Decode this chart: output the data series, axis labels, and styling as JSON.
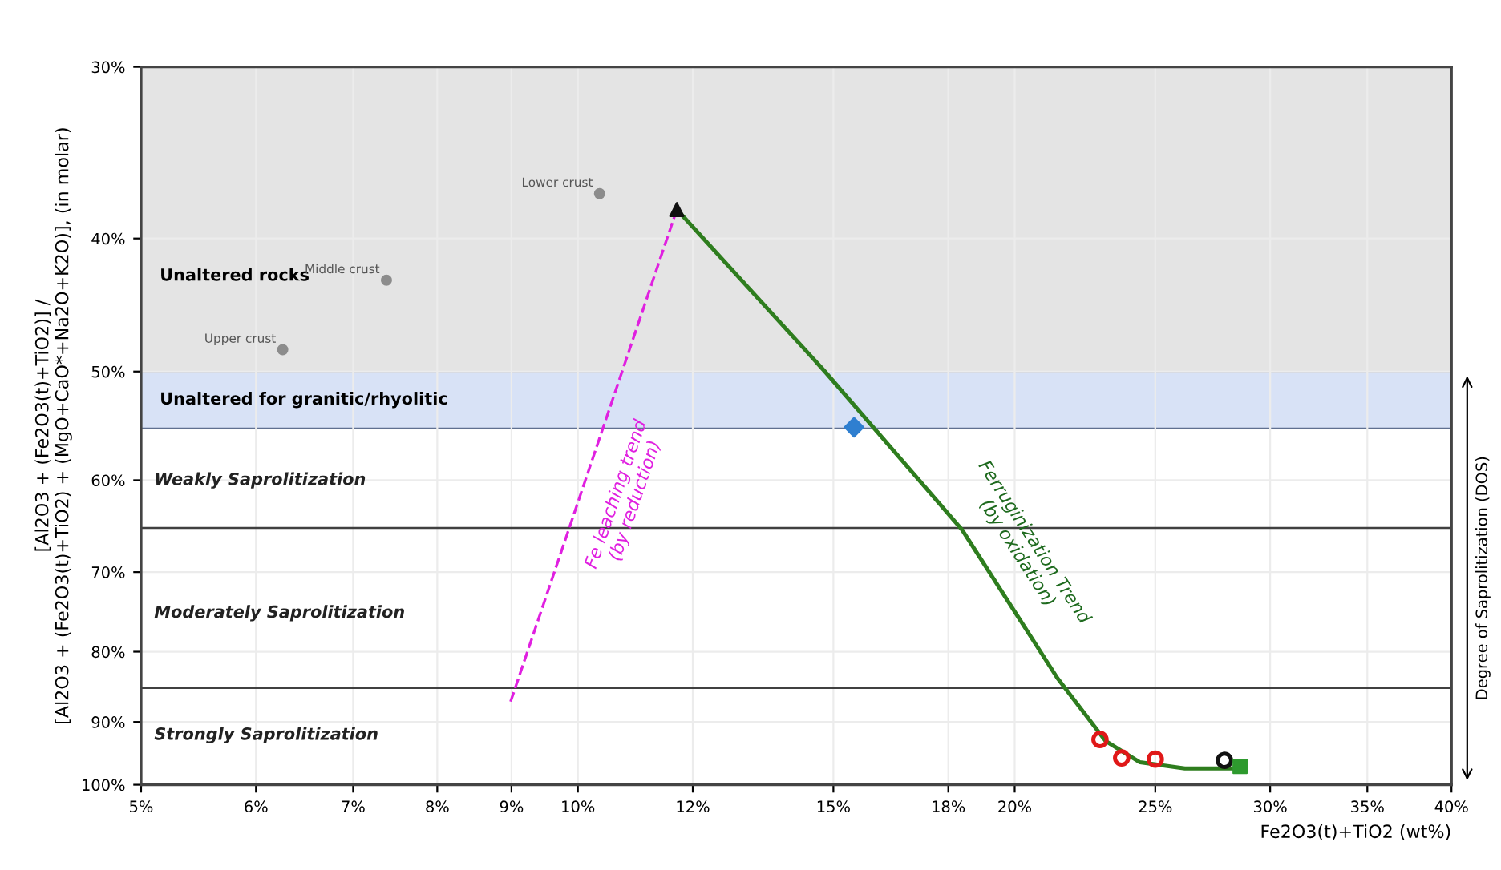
{
  "chart_data": {
    "type": "scatter",
    "xlabel": "Fe2O3(t)+TiO2 (wt%)",
    "ylabel": "[Al2O3 + (Fe2O3(t)+TiO2)] /\n[Al2O3 + (Fe2O3(t)+TiO2) + (MgO+CaO*+Na2O+K2O)], (in molar)",
    "log": "xy",
    "xlim": [
      5,
      40
    ],
    "ylim": [
      100,
      30
    ],
    "xticks": [
      {
        "value": 5,
        "label": "5%"
      },
      {
        "value": 6,
        "label": "6%"
      },
      {
        "value": 7,
        "label": "7%"
      },
      {
        "value": 8,
        "label": "8%"
      },
      {
        "value": 9,
        "label": "9%"
      },
      {
        "value": 10,
        "label": "10%"
      },
      {
        "value": 12,
        "label": "12%"
      },
      {
        "value": 15,
        "label": "15%"
      },
      {
        "value": 18,
        "label": "18%"
      },
      {
        "value": 20,
        "label": "20%"
      },
      {
        "value": 25,
        "label": "25%"
      },
      {
        "value": 30,
        "label": "30%"
      },
      {
        "value": 35,
        "label": "35%"
      },
      {
        "value": 40,
        "label": "40%"
      }
    ],
    "yticks": [
      {
        "value": 30,
        "label": "30%"
      },
      {
        "value": 40,
        "label": "40%"
      },
      {
        "value": 50,
        "label": "50%"
      },
      {
        "value": 60,
        "label": "60%"
      },
      {
        "value": 70,
        "label": "70%"
      },
      {
        "value": 80,
        "label": "80%"
      },
      {
        "value": 90,
        "label": "90%"
      },
      {
        "value": 100,
        "label": "100%"
      }
    ],
    "grid": true,
    "bands": [
      {
        "axis": "y",
        "from": 30,
        "to": 50,
        "label": "Unaltered rocks",
        "color": "#e4e4e4"
      },
      {
        "axis": "y",
        "from": 50,
        "to": 55,
        "label": "Unaltered for granitic/rhyolitic",
        "color": "#d8e2f6"
      }
    ],
    "ref_lines": [
      {
        "axis": "y",
        "value": 65,
        "color": "#404040"
      },
      {
        "axis": "y",
        "value": 85,
        "color": "#404040"
      }
    ],
    "annotations": [
      {
        "text": "Upper crust",
        "x": 6.26,
        "y": 48.2
      },
      {
        "text": "Middle crust",
        "x": 7.38,
        "y": 42.9
      },
      {
        "text": "Lower crust",
        "x": 10.35,
        "y": 37.1
      },
      "Weakly Saprolitization",
      "Moderately Saprolitization",
      "Strongly Saprolitization",
      "Fe leaching trend\n(by reduction)",
      "Ferruginization Trend\n(by oxidation)",
      "Degree of Saprolitization (DOS)"
    ],
    "series": [
      {
        "type": "line",
        "color": "#2e7d1e",
        "line_style": "solid",
        "marker": "none",
        "x": [
          11.7,
          14.8,
          18.4,
          21.4,
          23.1,
          24.4,
          26.2,
          28.7
        ],
        "values": [
          38.1,
          50.0,
          65.2,
          83.6,
          92.9,
          96.3,
          97.3,
          97.3
        ]
      },
      {
        "type": "line",
        "color": "#e020e0",
        "line_style": "dashed",
        "marker": "none",
        "x": [
          11.7,
          8.98
        ],
        "values": [
          38.1,
          87.2
        ]
      },
      {
        "color": "#8c8c8c",
        "marker": "circle",
        "x": [
          6.26,
          7.38,
          10.35
        ],
        "values": [
          48.2,
          42.9,
          37.1
        ]
      },
      {
        "color": "#111111",
        "marker": "triangle",
        "x": [
          11.7
        ],
        "values": [
          38.1
        ]
      },
      {
        "color": "#2f7fd0",
        "marker": "diamond",
        "x": [
          15.5
        ],
        "values": [
          54.9
        ]
      },
      {
        "color": "#e01818",
        "marker": "circle",
        "x": [
          22.9,
          23.7,
          25.0
        ],
        "values": [
          92.7,
          95.6,
          95.8
        ]
      },
      {
        "color": "#111111",
        "marker": "circle",
        "x": [
          27.9
        ],
        "values": [
          96.0
        ]
      },
      {
        "color": "#2e9a2e",
        "marker": "square",
        "x": [
          28.6
        ],
        "values": [
          97.0
        ]
      }
    ]
  }
}
